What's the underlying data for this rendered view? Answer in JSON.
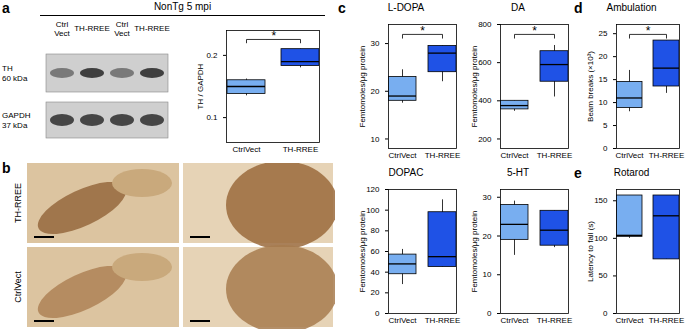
{
  "chart_data": [
    {
      "type": "box",
      "panel": "a",
      "ylabel": "TH / GAPDH",
      "categories": [
        "CtrlVect",
        "TH-RREE"
      ],
      "colors": [
        "#78aef0",
        "#1f52e6"
      ],
      "min": [
        0.135,
        0.18
      ],
      "q1": [
        0.138,
        0.183
      ],
      "median": [
        0.15,
        0.19
      ],
      "q3": [
        0.16,
        0.21
      ],
      "max": [
        0.162,
        0.21
      ],
      "ylim": [
        0.06,
        0.24
      ],
      "yticks": [
        0.1,
        0.2
      ],
      "annotations": [
        "*"
      ]
    },
    {
      "type": "box",
      "panel": "c",
      "title": "L-DOPA",
      "ylabel": "Femtomoles/μg protein",
      "categories": [
        "CtrlVect",
        "TH-RREE"
      ],
      "colors": [
        "#78aef0",
        "#1f52e6"
      ],
      "min": [
        17.5,
        22
      ],
      "q1": [
        18,
        24
      ],
      "median": [
        19,
        28
      ],
      "q3": [
        23,
        29.5
      ],
      "max": [
        24.5,
        29.5
      ],
      "ylim": [
        8,
        34
      ],
      "yticks": [
        10,
        20,
        30
      ],
      "annotations": [
        "*"
      ]
    },
    {
      "type": "box",
      "title": "DA",
      "ylabel": "Femtomoles/μg protein",
      "categories": [
        "CtrlVect",
        "TH-RREE"
      ],
      "colors": [
        "#78aef0",
        "#1f52e6"
      ],
      "min": [
        345,
        420
      ],
      "q1": [
        355,
        500
      ],
      "median": [
        375,
        590
      ],
      "q3": [
        400,
        660
      ],
      "max": [
        400,
        690
      ],
      "ylim": [
        150,
        800
      ],
      "yticks": [
        200,
        400,
        600,
        800
      ],
      "annotations": [
        "*"
      ]
    },
    {
      "type": "box",
      "title": "DOPAC",
      "ylabel": "Femtomoles/μg protein",
      "categories": [
        "CtrlVect",
        "TH-RREE"
      ],
      "colors": [
        "#78aef0",
        "#1f52e6"
      ],
      "min": [
        28,
        45
      ],
      "q1": [
        38,
        45
      ],
      "median": [
        48,
        55
      ],
      "q3": [
        57,
        98
      ],
      "max": [
        62,
        110
      ],
      "ylim": [
        0,
        120
      ],
      "yticks": [
        0,
        20,
        40,
        60,
        80,
        100,
        120
      ]
    },
    {
      "type": "box",
      "title": "5-HT",
      "ylabel": "Femtomoles/μg protein",
      "categories": [
        "CtrlVect",
        "TH-RREE"
      ],
      "colors": [
        "#78aef0",
        "#1f52e6"
      ],
      "min": [
        15,
        17
      ],
      "q1": [
        19,
        17.5
      ],
      "median": [
        23,
        21.5
      ],
      "q3": [
        28,
        26.5
      ],
      "max": [
        29,
        26.5
      ],
      "ylim": [
        0,
        32
      ],
      "yticks": [
        0,
        10,
        20,
        30
      ]
    },
    {
      "type": "box",
      "panel": "d",
      "title": "Ambulation",
      "ylabel": "Beam breaks (×10³)",
      "categories": [
        "CtrlVect",
        "TH-RREE"
      ],
      "colors": [
        "#78aef0",
        "#1f52e6"
      ],
      "min": [
        8,
        12
      ],
      "q1": [
        8.8,
        13.5
      ],
      "median": [
        11,
        17.5
      ],
      "q3": [
        14.5,
        23.5
      ],
      "max": [
        17,
        23.5
      ],
      "ylim": [
        0,
        27
      ],
      "yticks": [
        0,
        5,
        10,
        15,
        20,
        25
      ],
      "annotations": [
        "*"
      ]
    },
    {
      "type": "box",
      "panel": "e",
      "title": "Rotarod",
      "ylabel": "Latency to fall (s)",
      "categories": [
        "CtrlVect",
        "TH-RREE"
      ],
      "colors": [
        "#78aef0",
        "#1f52e6"
      ],
      "min": [
        100,
        72
      ],
      "q1": [
        102,
        72
      ],
      "median": [
        104,
        130
      ],
      "q3": [
        157,
        157
      ],
      "max": [
        157,
        157
      ],
      "ylim": [
        0,
        165
      ],
      "yticks": [
        0,
        50,
        100,
        150
      ]
    }
  ],
  "blot": {
    "title": "NonTg 5 mpi",
    "lanes": [
      "Ctrl Vect",
      "TH-RREE",
      "Ctrl Vect",
      "TH-RREE"
    ],
    "bands": [
      {
        "name": "TH",
        "size": "60 kDa"
      },
      {
        "name": "GAPDH",
        "size": "37 kDa"
      }
    ]
  },
  "histology": {
    "panel": "b",
    "rows": [
      "TH-RREE",
      "CtrlVect"
    ]
  }
}
